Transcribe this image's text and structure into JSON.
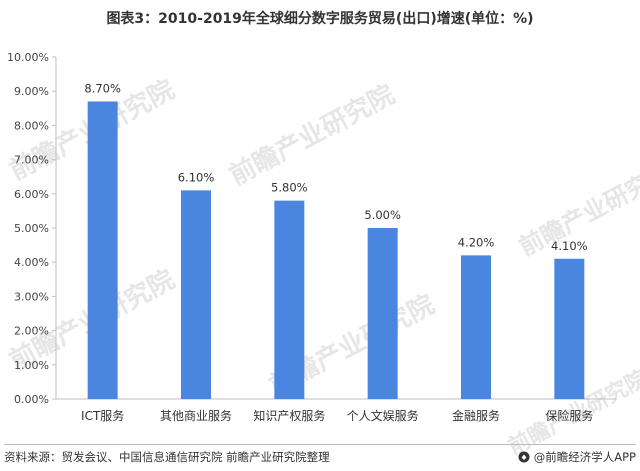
{
  "title": "图表3：2010-2019年全球细分数字服务贸易(出口)增速(单位：%)",
  "chart_data": {
    "type": "bar",
    "categories": [
      "ICT服务",
      "其他商业服务",
      "知识产权服务",
      "个人文娱服务",
      "金融服务",
      "保险服务"
    ],
    "values": [
      8.7,
      6.1,
      5.8,
      5.0,
      4.2,
      4.1
    ],
    "data_labels": [
      "8.70%",
      "6.10%",
      "5.80%",
      "5.00%",
      "4.20%",
      "4.10%"
    ],
    "yticks": [
      "0.00%",
      "1.00%",
      "2.00%",
      "3.00%",
      "4.00%",
      "5.00%",
      "6.00%",
      "7.00%",
      "8.00%",
      "9.00%",
      "10.00%"
    ],
    "ylim": [
      0,
      10
    ],
    "grid": false,
    "bar_color": "#4a86e0",
    "title": "图表3：2010-2019年全球细分数字服务贸易(出口)增速(单位：%)",
    "xlabel": "",
    "ylabel": ""
  },
  "footer": {
    "source": "资料来源：贸发会议、中国信息通信研究院 前瞻产业研究院整理",
    "brand": "@前瞻经济学人APP",
    "brand_icon": "qianzhan-logo-icon"
  },
  "watermark": {
    "text": "前瞻产业研究院"
  }
}
